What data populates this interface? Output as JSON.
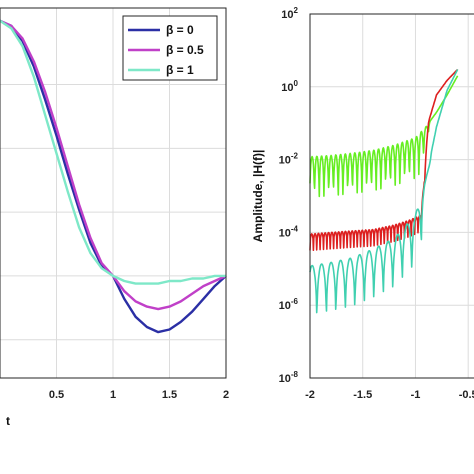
{
  "chart_data": [
    {
      "type": "line",
      "xlabel": "t",
      "ylabel": "",
      "xlim": [
        0,
        2
      ],
      "ylim": [
        -0.4,
        1.05
      ],
      "grid": true,
      "legend_position": "top-right",
      "x_ticks": [
        {
          "value": 0.5,
          "label": "0.5"
        },
        {
          "value": 1,
          "label": "1"
        },
        {
          "value": 1.5,
          "label": "1.5"
        },
        {
          "value": 2,
          "label": "2"
        }
      ],
      "series": [
        {
          "name": "β = 0",
          "color": "#2b2fa5",
          "x": [
            0,
            0.1,
            0.2,
            0.3,
            0.4,
            0.5,
            0.6,
            0.7,
            0.8,
            0.9,
            1.0,
            1.1,
            1.2,
            1.3,
            1.4,
            1.5,
            1.6,
            1.7,
            1.8,
            1.9,
            2.0
          ],
          "y": [
            1.0,
            0.98,
            0.92,
            0.82,
            0.69,
            0.55,
            0.4,
            0.26,
            0.13,
            0.04,
            0.0,
            -0.09,
            -0.16,
            -0.2,
            -0.22,
            -0.21,
            -0.18,
            -0.14,
            -0.09,
            -0.04,
            0.0
          ]
        },
        {
          "name": "β = 0.5",
          "color": "#c040c8",
          "x": [
            0,
            0.1,
            0.2,
            0.3,
            0.4,
            0.5,
            0.6,
            0.7,
            0.8,
            0.9,
            1.0,
            1.1,
            1.2,
            1.3,
            1.4,
            1.5,
            1.6,
            1.7,
            1.8,
            1.9,
            2.0
          ],
          "y": [
            1.0,
            0.98,
            0.93,
            0.84,
            0.72,
            0.58,
            0.43,
            0.28,
            0.15,
            0.05,
            0.0,
            -0.06,
            -0.1,
            -0.12,
            -0.13,
            -0.12,
            -0.1,
            -0.07,
            -0.04,
            -0.02,
            0.0
          ]
        },
        {
          "name": "β = 1",
          "color": "#7ee8c8",
          "x": [
            0,
            0.1,
            0.2,
            0.3,
            0.4,
            0.5,
            0.6,
            0.7,
            0.8,
            0.9,
            1.0,
            1.1,
            1.2,
            1.3,
            1.4,
            1.5,
            1.6,
            1.7,
            1.8,
            1.9,
            2.0
          ],
          "y": [
            1.0,
            0.97,
            0.9,
            0.78,
            0.63,
            0.48,
            0.33,
            0.19,
            0.09,
            0.03,
            0.0,
            -0.02,
            -0.03,
            -0.03,
            -0.03,
            -0.02,
            -0.02,
            -0.01,
            -0.01,
            0.0,
            0.0
          ]
        }
      ]
    },
    {
      "type": "line",
      "xlabel": "",
      "ylabel": "Amplitude, |H(f)|",
      "xlim": [
        -2,
        -0.35
      ],
      "ylim": [
        1e-08,
        100
      ],
      "yscale": "log",
      "grid": true,
      "x_ticks": [
        {
          "value": -2,
          "label": "-2"
        },
        {
          "value": -1.5,
          "label": "-1.5"
        },
        {
          "value": -1,
          "label": "-1"
        },
        {
          "value": -0.5,
          "label": "-0.5"
        }
      ],
      "y_ticks": [
        {
          "value": 1e-08,
          "base": "10",
          "exp": "-8"
        },
        {
          "value": 1e-06,
          "base": "10",
          "exp": "-6"
        },
        {
          "value": 0.0001,
          "base": "10",
          "exp": "-4"
        },
        {
          "value": 0.01,
          "base": "10",
          "exp": "-2"
        },
        {
          "value": 1,
          "base": "10",
          "exp": "0"
        },
        {
          "value": 100,
          "base": "10",
          "exp": "2"
        }
      ],
      "series": [
        {
          "color": "#66ee22",
          "x": [
            -2.0,
            -1.8,
            -1.6,
            -1.4,
            -1.2,
            -1.0,
            -0.9,
            -0.8,
            -0.7,
            -0.6
          ],
          "y": [
            0.012,
            0.013,
            0.015,
            0.018,
            0.025,
            0.04,
            0.08,
            0.2,
            0.6,
            2.0
          ]
        },
        {
          "color": "#dd1f1f",
          "x": [
            -2.0,
            -1.8,
            -1.6,
            -1.4,
            -1.2,
            -1.05,
            -0.95,
            -0.92,
            -0.88,
            -0.8,
            -0.7,
            -0.6
          ],
          "y": [
            9e-05,
            0.0001,
            0.00011,
            0.00012,
            0.00016,
            0.00022,
            0.0003,
            0.002,
            0.1,
            0.6,
            1.5,
            3.0
          ]
        },
        {
          "color": "#40d0b0",
          "x": [
            -2.0,
            -1.8,
            -1.6,
            -1.4,
            -1.2,
            -1.0,
            -0.9,
            -0.8,
            -0.7,
            -0.6
          ],
          "y": [
            1.2e-05,
            1.5e-05,
            2e-05,
            3.5e-05,
            7e-05,
            0.0003,
            0.003,
            0.08,
            0.8,
            3.0
          ]
        }
      ]
    }
  ]
}
